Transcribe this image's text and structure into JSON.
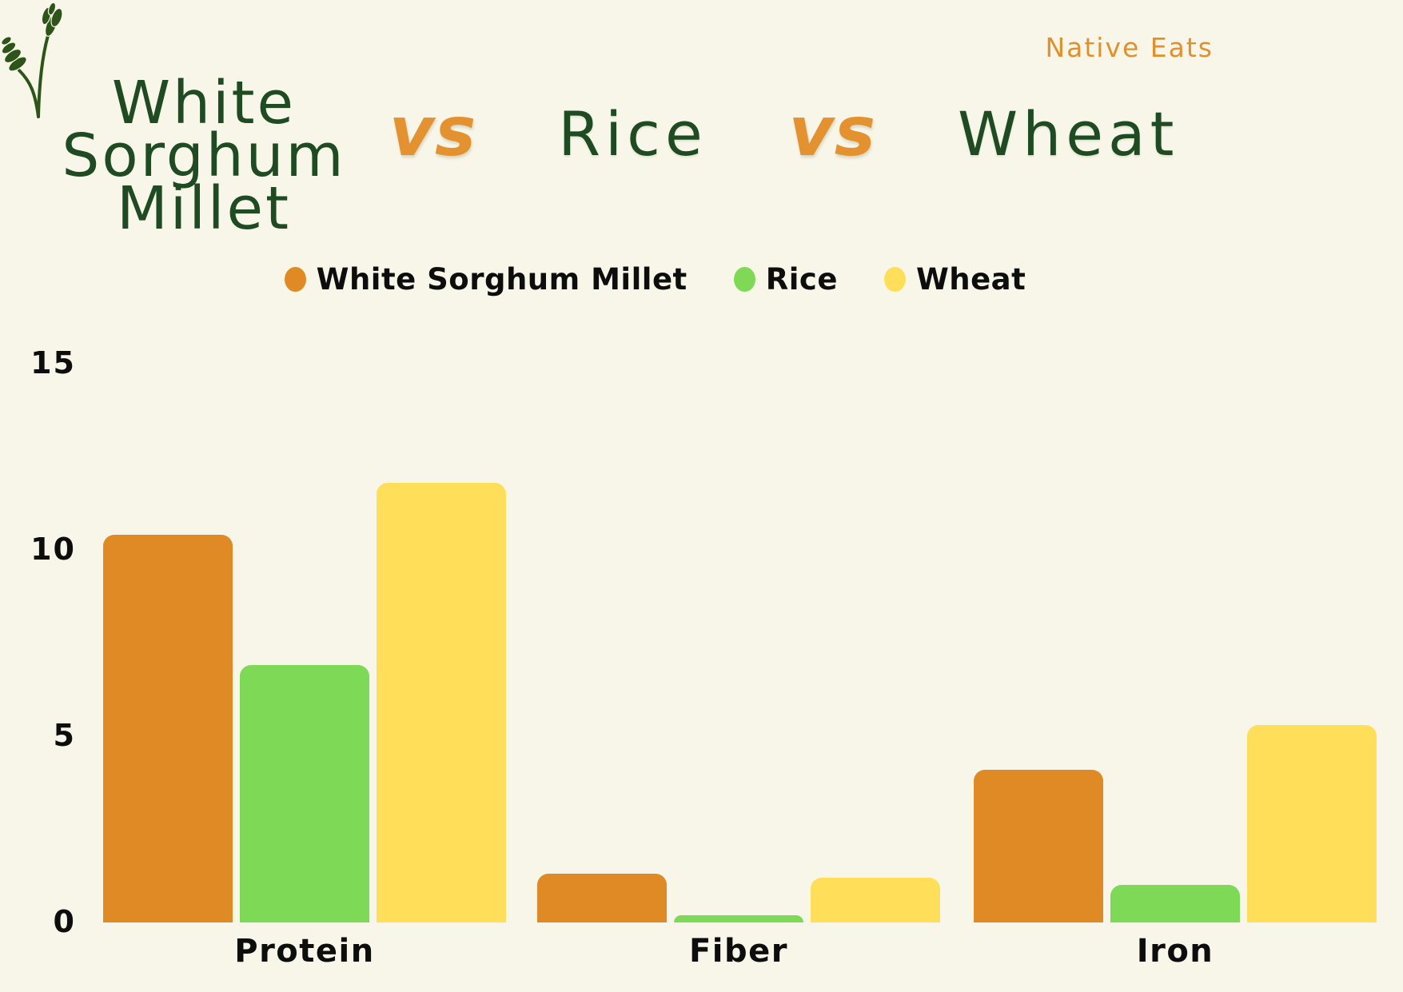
{
  "header": {
    "brand": "Native Eats",
    "title": "White Sorghum Millet",
    "vs": "vs",
    "competitor_1": "Rice",
    "competitor_2": "Wheat"
  },
  "colors": {
    "background": "#F7F6E8",
    "title_green": "#1E4B21",
    "accent_orange": "#E3922F",
    "millet_orange": "#E08A26",
    "rice_green": "#7ED957",
    "wheat_yellow": "#FFDE59",
    "text_black": "#0D0D0D",
    "sprig_green": "#2E5519"
  },
  "chart_data": {
    "type": "bar",
    "title": "White Sorghum Millet vs Rice vs Wheat",
    "categories": [
      "Protein",
      "Fiber",
      "Iron"
    ],
    "series": [
      {
        "name": "White Sorghum Millet",
        "color": "#E08A26",
        "values": [
          10.4,
          1.3,
          4.1
        ]
      },
      {
        "name": "Rice",
        "color": "#7ED957",
        "values": [
          6.9,
          0.2,
          1.0
        ]
      },
      {
        "name": "Wheat",
        "color": "#FFDE59",
        "values": [
          11.8,
          1.2,
          5.3
        ]
      }
    ],
    "xlabel": "",
    "ylabel": "",
    "yticks": [
      0,
      5,
      10,
      15
    ],
    "ylim": [
      0,
      15.5
    ],
    "grid": false,
    "legend_position": "top-center"
  }
}
